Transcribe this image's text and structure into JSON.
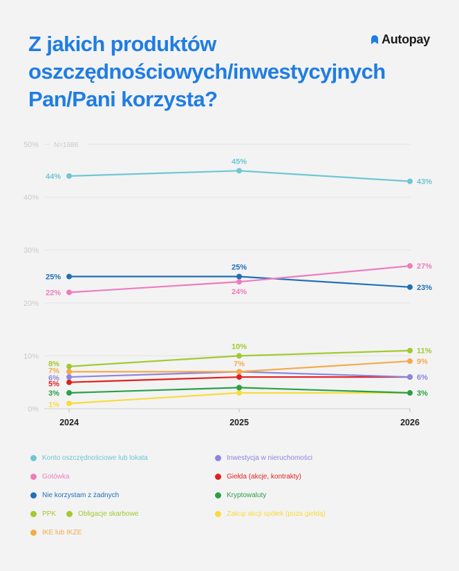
{
  "title": "Z jakich produktów oszczędnościowych/inwestycyjnych Pan/Pani korzysta?",
  "brand": "Autopay",
  "chart_data": {
    "type": "line",
    "x": [
      "2024",
      "2025",
      "2026"
    ],
    "ylim": [
      0,
      50
    ],
    "yticks": [
      "0%",
      "10%",
      "20%",
      "30%",
      "40%",
      "50%"
    ],
    "note": "N=1686",
    "grid": true,
    "legend_position": "bottom",
    "series": [
      {
        "name": "Konto oszczędnościowe lub lokata",
        "color": "#6ec6d3",
        "values": [
          44,
          45,
          43
        ],
        "labels": [
          "44%",
          "45%",
          "43%"
        ]
      },
      {
        "name": "Gotówka",
        "color": "#ee7bbd",
        "values": [
          22,
          24,
          27
        ],
        "labels": [
          "22%",
          "24%",
          "27%"
        ]
      },
      {
        "name": "Nie korzystam z żadnych",
        "color": "#1f6fb8",
        "values": [
          25,
          25,
          23
        ],
        "labels": [
          "25%",
          "25%",
          "23%"
        ]
      },
      {
        "name": "PPK",
        "color": "#a2c930",
        "values": [
          8,
          10,
          11
        ],
        "labels": [
          "8%",
          "10%",
          "11%"
        ]
      },
      {
        "name": "IKE lub IKZE",
        "color": "#f5a94a",
        "values": [
          7,
          7,
          9
        ],
        "labels": [
          "7%",
          "7%",
          "9%"
        ]
      },
      {
        "name": "Inwestycja w nieruchomości",
        "color": "#8b85e0",
        "values": [
          6,
          7,
          6
        ],
        "labels": [
          "6%",
          "",
          "6%"
        ]
      },
      {
        "name": "Giełda (akcje, kontrakty)",
        "color": "#e0201f",
        "values": [
          5,
          6,
          6
        ],
        "labels": [
          "5%",
          "",
          ""
        ]
      },
      {
        "name": "Kryptowaluty",
        "color": "#27a046",
        "values": [
          3,
          4,
          3
        ],
        "labels": [
          "3%",
          "",
          "3%"
        ]
      },
      {
        "name": "Zakup akcji spółek (poza giełdą)",
        "color": "#f7dc3c",
        "values": [
          1,
          3,
          3
        ],
        "labels": [
          "1%",
          "",
          ""
        ]
      }
    ],
    "legend": [
      {
        "label": "Konto oszczędnościowe lub lokata",
        "color": "#6ec6d3"
      },
      {
        "label": "Inwestycja w nieruchomości",
        "color": "#8b85e0"
      },
      {
        "label": "Gotówka",
        "color": "#ee7bbd"
      },
      {
        "label": "Giełda (akcje, kontrakty)",
        "color": "#e0201f"
      },
      {
        "label": "Nie korzystam z żadnych",
        "color": "#1f6fb8"
      },
      {
        "label": "Kryptowaluty",
        "color": "#27a046"
      },
      {
        "label": "PPK",
        "color": "#a2c930"
      },
      {
        "label": "Obligacje skarbowe",
        "color": "#a2c930"
      },
      {
        "label": "Zakup akcji spółek (poza giełdą)",
        "color": "#f7dc3c"
      },
      {
        "label": "IKE lub IKZE",
        "color": "#f5a94a"
      }
    ]
  }
}
